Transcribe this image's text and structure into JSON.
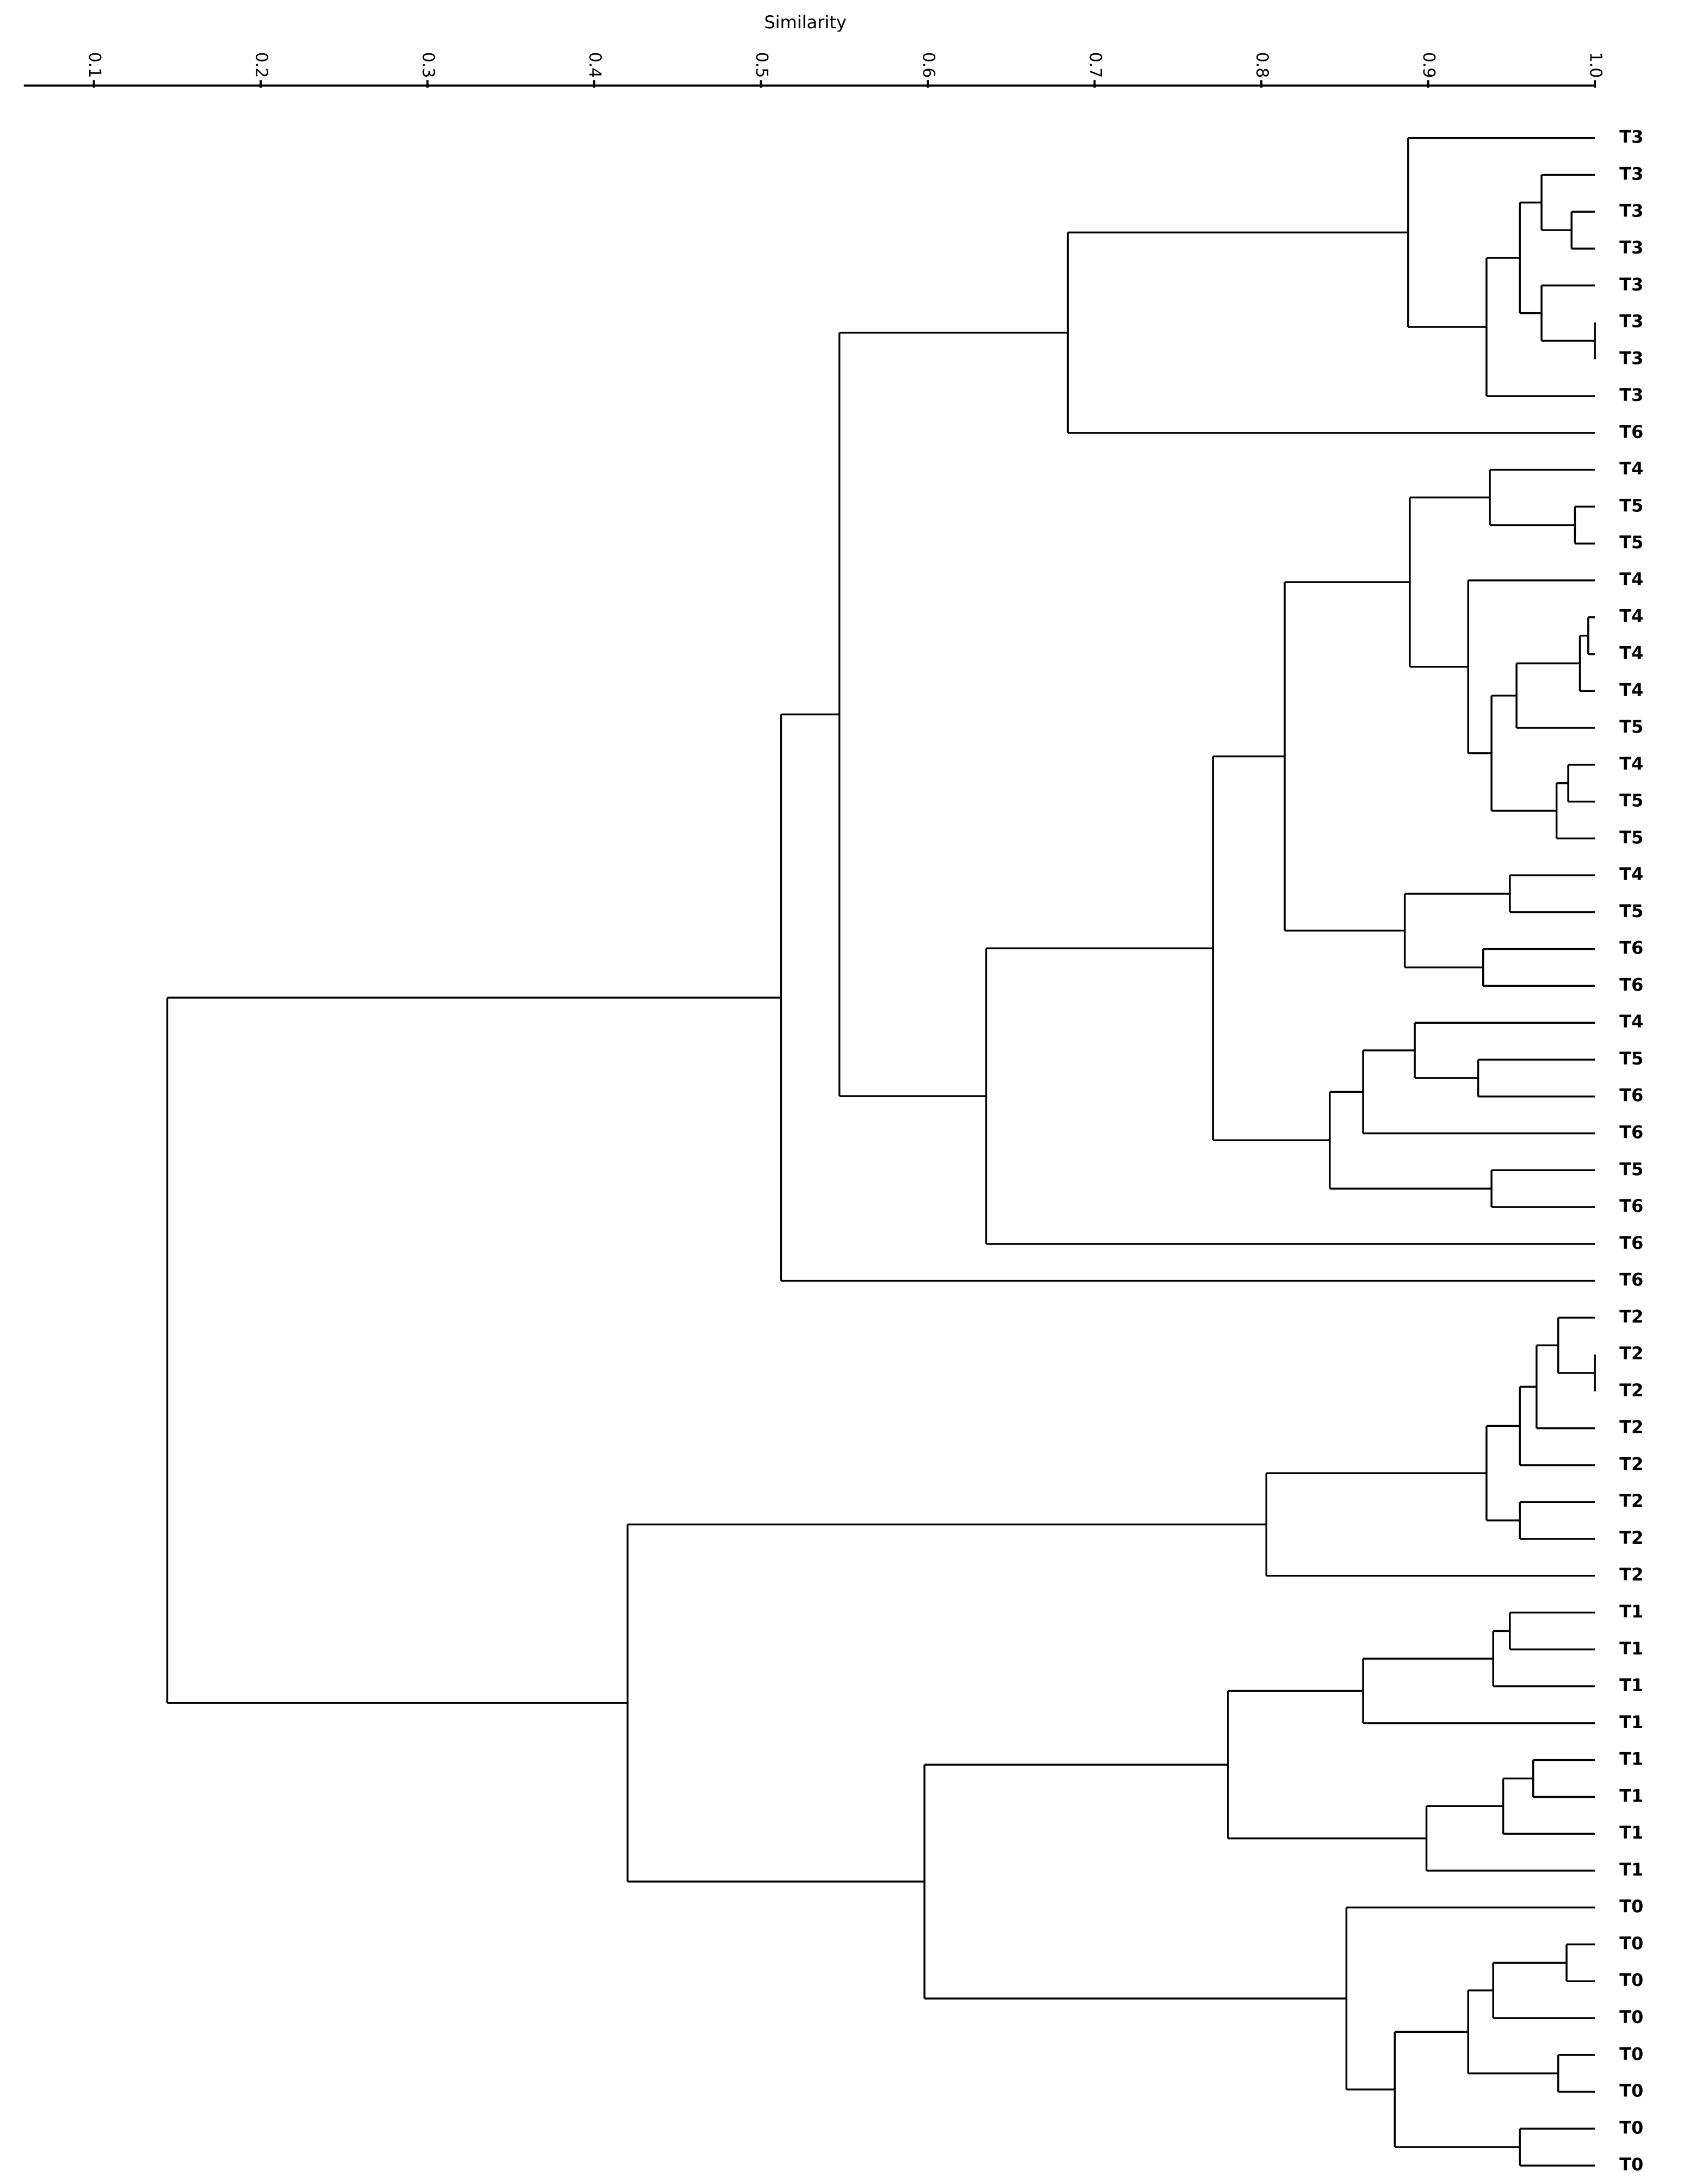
{
  "chart_data": {
    "type": "dendrogram",
    "title": "Similarity",
    "xlim": [
      0.058,
      1.0
    ],
    "xticks": [
      0.1,
      0.2,
      0.3,
      0.4,
      0.5,
      0.6,
      0.7,
      0.8,
      0.9,
      {
        "value": 1,
        "label": "1.0"
      }
    ],
    "color": "#000000",
    "tree": {
      "similarity": 0.144,
      "children": [
        {
          "similarity": 0.512,
          "children": [
            {
              "similarity": 0.547,
              "children": [
                {
                  "similarity": 0.684,
                  "children": [
                    {
                      "similarity": 0.888,
                      "children": [
                        {
                          "label": "T3"
                        },
                        {
                          "similarity": 0.935,
                          "children": [
                            {
                              "similarity": 0.955,
                              "children": [
                                {
                                  "similarity": 0.968,
                                  "children": [
                                    {
                                      "label": "T3"
                                    },
                                    {
                                      "similarity": 0.986,
                                      "children": [
                                        {
                                          "label": "T3"
                                        },
                                        {
                                          "label": "T3"
                                        }
                                      ]
                                    }
                                  ]
                                },
                                {
                                  "similarity": 0.968,
                                  "children": [
                                    {
                                      "label": "T3"
                                    },
                                    {
                                      "similarity": 1.0,
                                      "children": [
                                        {
                                          "label": "T3"
                                        },
                                        {
                                          "label": "T3"
                                        }
                                      ]
                                    }
                                  ]
                                }
                              ]
                            },
                            {
                              "label": "T3"
                            }
                          ]
                        }
                      ]
                    },
                    {
                      "label": "T6"
                    }
                  ]
                },
                {
                  "similarity": 0.635,
                  "children": [
                    {
                      "similarity": 0.771,
                      "children": [
                        {
                          "similarity": 0.814,
                          "children": [
                            {
                              "similarity": 0.889,
                              "children": [
                                {
                                  "similarity": 0.937,
                                  "children": [
                                    {
                                      "label": "T4"
                                    },
                                    {
                                      "similarity": 0.988,
                                      "children": [
                                        {
                                          "label": "T5"
                                        },
                                        {
                                          "label": "T5"
                                        }
                                      ]
                                    }
                                  ]
                                },
                                {
                                  "similarity": 0.924,
                                  "children": [
                                    {
                                      "label": "T4"
                                    },
                                    {
                                      "similarity": 0.938,
                                      "children": [
                                        {
                                          "similarity": 0.953,
                                          "children": [
                                            {
                                              "similarity": 0.991,
                                              "children": [
                                                {
                                                  "similarity": 0.996,
                                                  "children": [
                                                    {
                                                      "label": "T4"
                                                    },
                                                    {
                                                      "label": "T4"
                                                    }
                                                  ]
                                                },
                                                {
                                                  "label": "T4"
                                                }
                                              ]
                                            },
                                            {
                                              "label": "T5"
                                            }
                                          ]
                                        },
                                        {
                                          "similarity": 0.977,
                                          "children": [
                                            {
                                              "similarity": 0.984,
                                              "children": [
                                                {
                                                  "label": "T4"
                                                },
                                                {
                                                  "label": "T5"
                                                }
                                              ]
                                            },
                                            {
                                              "label": "T5"
                                            }
                                          ]
                                        }
                                      ]
                                    }
                                  ]
                                }
                              ]
                            },
                            {
                              "similarity": 0.886,
                              "children": [
                                {
                                  "similarity": 0.949,
                                  "children": [
                                    {
                                      "label": "T4"
                                    },
                                    {
                                      "label": "T5"
                                    }
                                  ]
                                },
                                {
                                  "similarity": 0.933,
                                  "children": [
                                    {
                                      "label": "T6"
                                    },
                                    {
                                      "label": "T6"
                                    }
                                  ]
                                }
                              ]
                            }
                          ]
                        },
                        {
                          "similarity": 0.841,
                          "children": [
                            {
                              "similarity": 0.861,
                              "children": [
                                {
                                  "similarity": 0.892,
                                  "children": [
                                    {
                                      "label": "T4"
                                    },
                                    {
                                      "similarity": 0.93,
                                      "children": [
                                        {
                                          "label": "T5"
                                        },
                                        {
                                          "label": "T6"
                                        }
                                      ]
                                    }
                                  ]
                                },
                                {
                                  "label": "T6"
                                }
                              ]
                            },
                            {
                              "similarity": 0.938,
                              "children": [
                                {
                                  "label": "T5"
                                },
                                {
                                  "label": "T6"
                                }
                              ]
                            }
                          ]
                        }
                      ]
                    },
                    {
                      "label": "T6"
                    }
                  ]
                }
              ]
            },
            {
              "label": "T6"
            }
          ]
        },
        {
          "similarity": 0.42,
          "children": [
            {
              "similarity": 0.803,
              "children": [
                {
                  "similarity": 0.935,
                  "children": [
                    {
                      "similarity": 0.955,
                      "children": [
                        {
                          "similarity": 0.965,
                          "children": [
                            {
                              "similarity": 0.978,
                              "children": [
                                {
                                  "label": "T2"
                                },
                                {
                                  "similarity": 1.0,
                                  "children": [
                                    {
                                      "label": "T2"
                                    },
                                    {
                                      "label": "T2"
                                    }
                                  ]
                                }
                              ]
                            },
                            {
                              "label": "T2"
                            }
                          ]
                        },
                        {
                          "label": "T2"
                        }
                      ]
                    },
                    {
                      "similarity": 0.955,
                      "children": [
                        {
                          "label": "T2"
                        },
                        {
                          "label": "T2"
                        }
                      ]
                    }
                  ]
                },
                {
                  "label": "T2"
                }
              ]
            },
            {
              "similarity": 0.598,
              "children": [
                {
                  "similarity": 0.78,
                  "children": [
                    {
                      "similarity": 0.861,
                      "children": [
                        {
                          "similarity": 0.939,
                          "children": [
                            {
                              "similarity": 0.949,
                              "children": [
                                {
                                  "label": "T1"
                                },
                                {
                                  "label": "T1"
                                }
                              ]
                            },
                            {
                              "label": "T1"
                            }
                          ]
                        },
                        {
                          "label": "T1"
                        }
                      ]
                    },
                    {
                      "similarity": 0.899,
                      "children": [
                        {
                          "similarity": 0.945,
                          "children": [
                            {
                              "similarity": 0.963,
                              "children": [
                                {
                                  "label": "T1"
                                },
                                {
                                  "label": "T1"
                                }
                              ]
                            },
                            {
                              "label": "T1"
                            }
                          ]
                        },
                        {
                          "label": "T1"
                        }
                      ]
                    }
                  ]
                },
                {
                  "similarity": 0.851,
                  "children": [
                    {
                      "label": "T0"
                    },
                    {
                      "similarity": 0.88,
                      "children": [
                        {
                          "similarity": 0.924,
                          "children": [
                            {
                              "similarity": 0.939,
                              "children": [
                                {
                                  "similarity": 0.983,
                                  "children": [
                                    {
                                      "label": "T0"
                                    },
                                    {
                                      "label": "T0"
                                    }
                                  ]
                                },
                                {
                                  "label": "T0"
                                }
                              ]
                            },
                            {
                              "similarity": 0.978,
                              "children": [
                                {
                                  "label": "T0"
                                },
                                {
                                  "label": "T0"
                                }
                              ]
                            }
                          ]
                        },
                        {
                          "similarity": 0.955,
                          "children": [
                            {
                              "label": "T0"
                            },
                            {
                              "label": "T0"
                            }
                          ]
                        }
                      ]
                    }
                  ]
                }
              ]
            }
          ]
        }
      ]
    }
  }
}
